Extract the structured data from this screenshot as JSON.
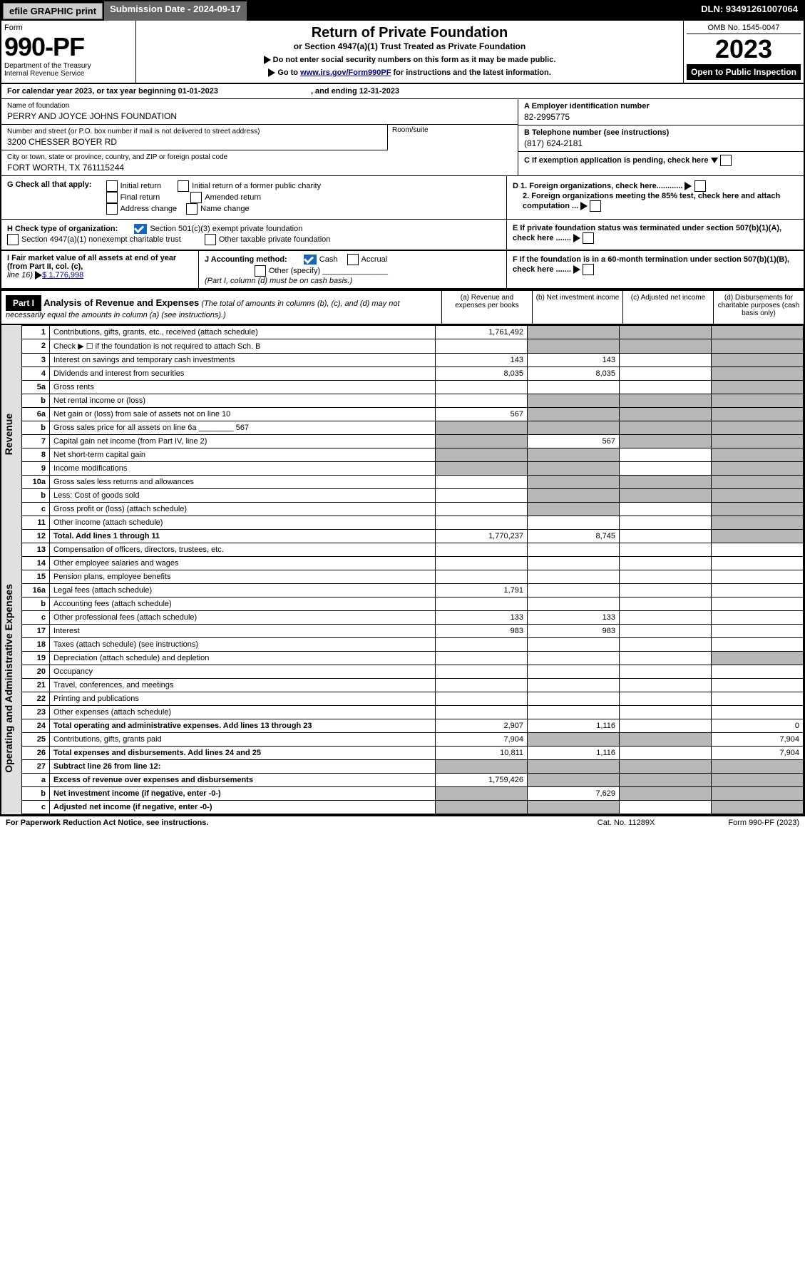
{
  "header": {
    "efile": "efile GRAPHIC print",
    "subdate_lbl": "Submission Date - ",
    "subdate": "2024-09-17",
    "dln": "DLN: 93491261007064"
  },
  "top": {
    "form_lbl": "Form",
    "form_no": "990-PF",
    "dept": "Department of the Treasury",
    "irs": "Internal Revenue Service",
    "title": "Return of Private Foundation",
    "subtitle": "or Section 4947(a)(1) Trust Treated as Private Foundation",
    "inst1": "Do not enter social security numbers on this form as it may be made public.",
    "inst2": "Go to ",
    "link": "www.irs.gov/Form990PF",
    "inst3": " for instructions and the latest information.",
    "omb": "OMB No. 1545-0047",
    "year": "2023",
    "open": "Open to Public Inspection"
  },
  "cal": {
    "a": "For calendar year 2023, or tax year beginning ",
    "b": "01-01-2023",
    "c": ", and ending ",
    "d": "12-31-2023"
  },
  "info": {
    "name_lbl": "Name of foundation",
    "name": "PERRY AND JOYCE JOHNS FOUNDATION",
    "addr_lbl": "Number and street (or P.O. box number if mail is not delivered to street address)",
    "addr": "3200 CHESSER BOYER RD",
    "room_lbl": "Room/suite",
    "city_lbl": "City or town, state or province, country, and ZIP or foreign postal code",
    "city": "FORT WORTH, TX  761115244",
    "a_lbl": "A Employer identification number",
    "a_val": "82-2995775",
    "b_lbl": "B Telephone number (see instructions)",
    "b_val": "(817) 624-2181",
    "c_lbl": "C If exemption application is pending, check here"
  },
  "g": {
    "lbl": "G Check all that apply:",
    "opts": [
      "Initial return",
      "Initial return of a former public charity",
      "Final return",
      "Amended return",
      "Address change",
      "Name change"
    ],
    "d1": "D 1. Foreign organizations, check here............",
    "d2": "2. Foreign organizations meeting the 85% test, check here and attach computation ..."
  },
  "h": {
    "lbl": "H Check type of organization:",
    "o1": "Section 501(c)(3) exempt private foundation",
    "o2": "Section 4947(a)(1) nonexempt charitable trust",
    "o3": "Other taxable private foundation",
    "e": "E  If private foundation status was terminated under section 507(b)(1)(A), check here ......."
  },
  "i": {
    "lbl": "I Fair market value of all assets at end of year (from Part II, col. (c),",
    "line": "line 16)",
    "val": "$  1,776,998",
    "j": "J Accounting method:",
    "cash": "Cash",
    "acc": "Accrual",
    "other": "Other (specify)",
    "note": "(Part I, column (d) must be on cash basis.)",
    "f": "F  If the foundation is in a 60-month termination under section 507(b)(1)(B), check here ......."
  },
  "part1": {
    "tag": "Part I",
    "title": "Analysis of Revenue and Expenses",
    "note": "(The total of amounts in columns (b), (c), and (d) may not necessarily equal the amounts in column (a) (see instructions).)",
    "cols": [
      "(a)  Revenue and expenses per books",
      "(b)  Net investment income",
      "(c)  Adjusted net income",
      "(d)  Disbursements for charitable purposes (cash basis only)"
    ]
  },
  "side": {
    "rev": "Revenue",
    "exp": "Operating and Administrative Expenses"
  },
  "rows": [
    {
      "n": "1",
      "d": "Contributions, gifts, grants, etc., received (attach schedule)",
      "a": "1,761,492",
      "ag": false,
      "bg": true,
      "cg": true,
      "dg": true
    },
    {
      "n": "2",
      "d": "Check ▶ ☐ if the foundation is not required to attach Sch. B",
      "a": "",
      "ag": false,
      "bg": true,
      "cg": true,
      "dg": true
    },
    {
      "n": "3",
      "d": "Interest on savings and temporary cash investments",
      "a": "143",
      "b": "143",
      "ag": false,
      "bg": false,
      "cg": false,
      "dg": true
    },
    {
      "n": "4",
      "d": "Dividends and interest from securities",
      "a": "8,035",
      "b": "8,035",
      "ag": false,
      "bg": false,
      "cg": false,
      "dg": true
    },
    {
      "n": "5a",
      "d": "Gross rents",
      "ag": false,
      "bg": false,
      "cg": false,
      "dg": true
    },
    {
      "n": "b",
      "d": "Net rental income or (loss)",
      "ag": false,
      "bg": true,
      "cg": true,
      "dg": true
    },
    {
      "n": "6a",
      "d": "Net gain or (loss) from sale of assets not on line 10",
      "a": "567",
      "ag": false,
      "bg": true,
      "cg": true,
      "dg": true
    },
    {
      "n": "b",
      "d": "Gross sales price for all assets on line 6a ________ 567",
      "ag": true,
      "bg": true,
      "cg": true,
      "dg": true
    },
    {
      "n": "7",
      "d": "Capital gain net income (from Part IV, line 2)",
      "b": "567",
      "ag": true,
      "bg": false,
      "cg": true,
      "dg": true
    },
    {
      "n": "8",
      "d": "Net short-term capital gain",
      "ag": true,
      "bg": true,
      "cg": false,
      "dg": true
    },
    {
      "n": "9",
      "d": "Income modifications",
      "ag": true,
      "bg": true,
      "cg": false,
      "dg": true
    },
    {
      "n": "10a",
      "d": "Gross sales less returns and allowances",
      "ag": false,
      "bg": true,
      "cg": true,
      "dg": true
    },
    {
      "n": "b",
      "d": "Less: Cost of goods sold",
      "ag": false,
      "bg": true,
      "cg": true,
      "dg": true
    },
    {
      "n": "c",
      "d": "Gross profit or (loss) (attach schedule)",
      "ag": false,
      "bg": true,
      "cg": false,
      "dg": true
    },
    {
      "n": "11",
      "d": "Other income (attach schedule)",
      "ag": false,
      "bg": false,
      "cg": false,
      "dg": true
    },
    {
      "n": "12",
      "d": "Total. Add lines 1 through 11",
      "a": "1,770,237",
      "b": "8,745",
      "bold": true,
      "ag": false,
      "bg": false,
      "cg": false,
      "dg": true
    },
    {
      "n": "13",
      "d": "Compensation of officers, directors, trustees, etc.",
      "ag": false,
      "bg": false,
      "cg": false,
      "dg": false,
      "sec": "exp"
    },
    {
      "n": "14",
      "d": "Other employee salaries and wages",
      "ag": false,
      "bg": false,
      "cg": false,
      "dg": false
    },
    {
      "n": "15",
      "d": "Pension plans, employee benefits",
      "ag": false,
      "bg": false,
      "cg": false,
      "dg": false
    },
    {
      "n": "16a",
      "d": "Legal fees (attach schedule)",
      "a": "1,791",
      "ag": false,
      "bg": false,
      "cg": false,
      "dg": false
    },
    {
      "n": "b",
      "d": "Accounting fees (attach schedule)",
      "ag": false,
      "bg": false,
      "cg": false,
      "dg": false
    },
    {
      "n": "c",
      "d": "Other professional fees (attach schedule)",
      "a": "133",
      "b": "133",
      "ag": false,
      "bg": false,
      "cg": false,
      "dg": false
    },
    {
      "n": "17",
      "d": "Interest",
      "a": "983",
      "b": "983",
      "ag": false,
      "bg": false,
      "cg": false,
      "dg": false
    },
    {
      "n": "18",
      "d": "Taxes (attach schedule) (see instructions)",
      "ag": false,
      "bg": false,
      "cg": false,
      "dg": false
    },
    {
      "n": "19",
      "d": "Depreciation (attach schedule) and depletion",
      "ag": false,
      "bg": false,
      "cg": false,
      "dg": true
    },
    {
      "n": "20",
      "d": "Occupancy",
      "ag": false,
      "bg": false,
      "cg": false,
      "dg": false
    },
    {
      "n": "21",
      "d": "Travel, conferences, and meetings",
      "ag": false,
      "bg": false,
      "cg": false,
      "dg": false
    },
    {
      "n": "22",
      "d": "Printing and publications",
      "ag": false,
      "bg": false,
      "cg": false,
      "dg": false
    },
    {
      "n": "23",
      "d": "Other expenses (attach schedule)",
      "ag": false,
      "bg": false,
      "cg": false,
      "dg": false
    },
    {
      "n": "24",
      "d": "Total operating and administrative expenses. Add lines 13 through 23",
      "a": "2,907",
      "b": "1,116",
      "d4": "0",
      "bold": true,
      "ag": false,
      "bg": false,
      "cg": false,
      "dg": false
    },
    {
      "n": "25",
      "d": "Contributions, gifts, grants paid",
      "a": "7,904",
      "d4": "7,904",
      "ag": false,
      "bg": true,
      "cg": true,
      "dg": false
    },
    {
      "n": "26",
      "d": "Total expenses and disbursements. Add lines 24 and 25",
      "a": "10,811",
      "b": "1,116",
      "d4": "7,904",
      "bold": true,
      "ag": false,
      "bg": false,
      "cg": false,
      "dg": false
    },
    {
      "n": "27",
      "d": "Subtract line 26 from line 12:",
      "ag": true,
      "bg": true,
      "cg": true,
      "dg": true,
      "bold": true
    },
    {
      "n": "a",
      "d": "Excess of revenue over expenses and disbursements",
      "a": "1,759,426",
      "bold": true,
      "ag": false,
      "bg": true,
      "cg": true,
      "dg": true
    },
    {
      "n": "b",
      "d": "Net investment income (if negative, enter -0-)",
      "b": "7,629",
      "bold": true,
      "ag": true,
      "bg": false,
      "cg": true,
      "dg": true
    },
    {
      "n": "c",
      "d": "Adjusted net income (if negative, enter -0-)",
      "bold": true,
      "ag": true,
      "bg": true,
      "cg": false,
      "dg": true
    }
  ],
  "footer": {
    "left": "For Paperwork Reduction Act Notice, see instructions.",
    "mid": "Cat. No. 11289X",
    "right": "Form 990-PF (2023)"
  }
}
